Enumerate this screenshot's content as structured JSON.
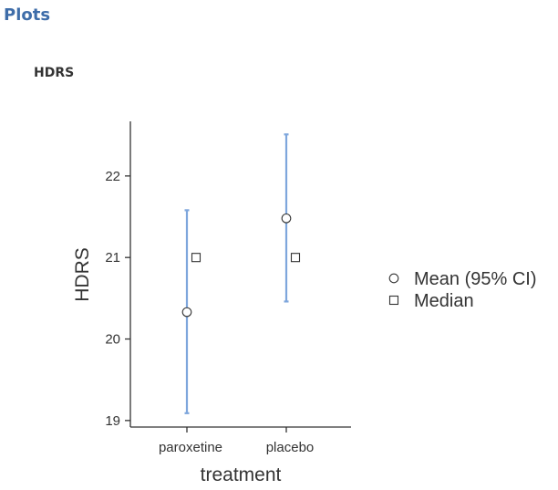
{
  "header": {
    "section_title": "Plots",
    "plot_title": "HDRS"
  },
  "chart_data": {
    "type": "scatter",
    "title": "HDRS",
    "xlabel": "treatment",
    "ylabel": "HDRS",
    "categories": [
      "paroxetine",
      "placebo"
    ],
    "yticks": [
      19,
      20,
      21,
      22
    ],
    "ylim": [
      18.92,
      22.67
    ],
    "series": [
      {
        "name": "Mean (95% CI)",
        "marker": "circle",
        "values": [
          20.33,
          21.48
        ],
        "ci_low": [
          19.09,
          20.46
        ],
        "ci_high": [
          21.58,
          22.51
        ]
      },
      {
        "name": "Median",
        "marker": "square",
        "values": [
          21,
          21
        ]
      }
    ],
    "grid": false,
    "legend_position": "right",
    "colors": {
      "errorbar": "#7ea6dc",
      "axis": "#333333",
      "marker_stroke": "#333333",
      "marker_fill": "#ffffff"
    }
  }
}
